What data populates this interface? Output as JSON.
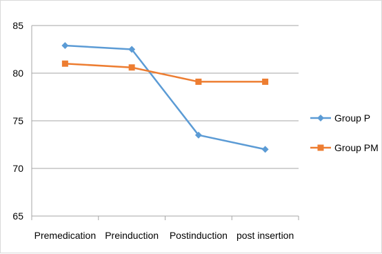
{
  "chart_data": {
    "type": "line",
    "categories": [
      "Premedication",
      "Preinduction",
      "Postinduction",
      "post insertion"
    ],
    "ylim": [
      65,
      85
    ],
    "yticks": [
      65,
      70,
      75,
      80,
      85
    ],
    "grid": true,
    "legend_position": "right",
    "series": [
      {
        "name": "Group P",
        "values": [
          82.9,
          82.5,
          73.5,
          72.0
        ],
        "color": "#5b9bd5",
        "marker": "diamond"
      },
      {
        "name": "Group PM",
        "values": [
          81.0,
          80.6,
          79.1,
          79.1
        ],
        "color": "#ed7d31",
        "marker": "square"
      }
    ]
  }
}
